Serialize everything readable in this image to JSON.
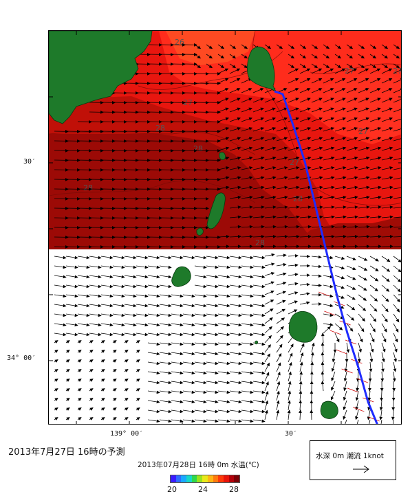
{
  "caption": "2013年7月27日  16時の予測",
  "colorbar": {
    "title": "2013年07月28日 16時 0m 水温(℃)",
    "ticks": [
      "20",
      "24",
      "28"
    ],
    "colors": [
      "#3a1cff",
      "#2f6cff",
      "#1aa8ff",
      "#18d8c8",
      "#2fd84c",
      "#9be21e",
      "#e9e81a",
      "#ffb514",
      "#ff7a0e",
      "#ff3a0a",
      "#e8140a",
      "#b2000a",
      "#7a0006"
    ]
  },
  "legend": {
    "text": "水深 0m  潮流  1knot"
  },
  "axes": {
    "lat_labels": [
      "30′",
      "34° 00′"
    ],
    "lon_labels": [
      "139° 00′",
      "30′"
    ]
  },
  "contour_labels": [
    "26",
    "27",
    "27",
    "27",
    "27",
    "27",
    "28",
    "28",
    "28",
    "28",
    "28"
  ],
  "colors": {
    "land": "#1e7a2a",
    "sea_27": "#ff2a1a",
    "sea_275": "#e01812",
    "sea_28": "#b4100c",
    "sea_285": "#8c0a06",
    "sea_26": "#ff5a20",
    "track": "#1f2cff"
  }
}
